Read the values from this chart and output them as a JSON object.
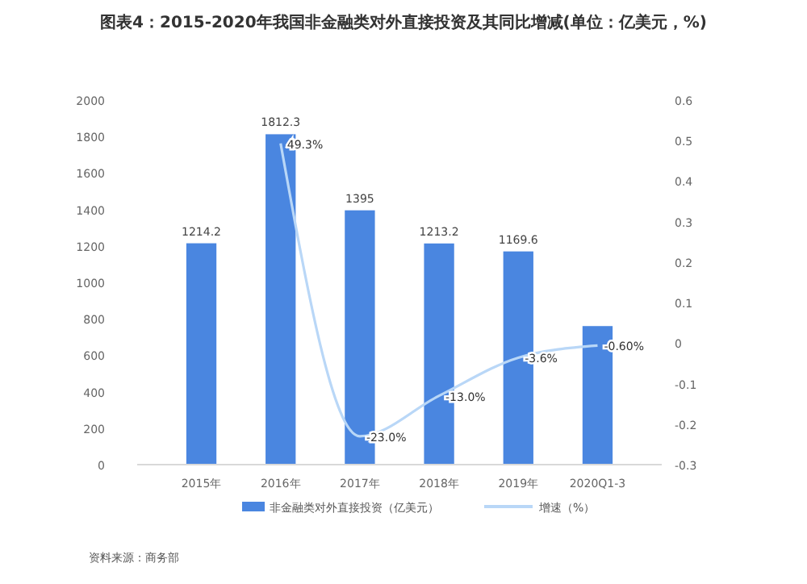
{
  "chart_data": {
    "type": "bar",
    "title": "图表4：2015-2020年我国非金融类对外直接投资及其同比增减(单位：亿美元，%)",
    "categories": [
      "2015年",
      "2016年",
      "2017年",
      "2018年",
      "2019年",
      "2020Q1-3"
    ],
    "series": [
      {
        "name": "非金融类对外直接投资（亿美元）",
        "color": "#4a86e0",
        "values": [
          1214.2,
          1812.3,
          1395,
          1213.2,
          1169.6,
          760
        ],
        "value_labels": [
          "1214.2",
          "1812.3",
          "1395",
          "1213.2",
          "1169.6",
          null
        ]
      },
      {
        "name": "增速（%）",
        "type": "line",
        "axis": "y2",
        "color": "#b9d7f7",
        "values": [
          null,
          0.493,
          -0.23,
          -0.13,
          -0.036,
          -0.006
        ],
        "value_labels": [
          null,
          "49.3%",
          "-23.0%",
          "-13.0%",
          "-3.6%",
          "-0.60%"
        ]
      }
    ],
    "ylim": [
      0,
      2000
    ],
    "yticks": [
      0,
      200,
      400,
      600,
      800,
      1000,
      1200,
      1400,
      1600,
      1800,
      2000
    ],
    "y2lim": [
      -0.3,
      0.6
    ],
    "y2ticks": [
      -0.3,
      -0.2,
      -0.1,
      0,
      0.1,
      0.2,
      0.3,
      0.4,
      0.5,
      0.6
    ],
    "legend": "bottom",
    "annotations": [
      "资料来源：商务部"
    ]
  }
}
